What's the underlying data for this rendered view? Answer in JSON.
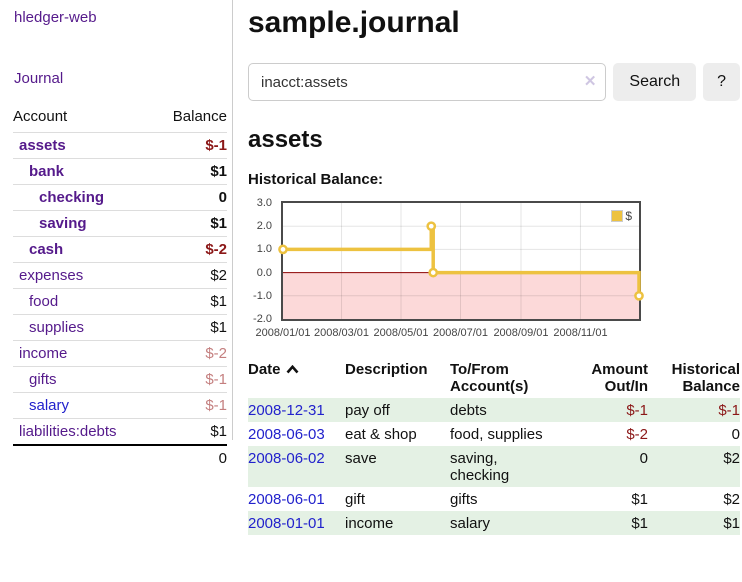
{
  "sidebar": {
    "brand": "hledger-web",
    "nav_journal": "Journal",
    "accounts_table": {
      "account_header": "Account",
      "balance_header": "Balance",
      "rows": [
        {
          "label": "assets",
          "depth": 0,
          "bold": true,
          "balance": "$-1",
          "neg": "strong",
          "link": "purple"
        },
        {
          "label": "bank",
          "depth": 1,
          "bold": true,
          "balance": "$1",
          "neg": "none",
          "link": "purple"
        },
        {
          "label": "checking",
          "depth": 2,
          "bold": true,
          "balance": "0",
          "neg": "none",
          "link": "purple"
        },
        {
          "label": "saving",
          "depth": 2,
          "bold": true,
          "balance": "$1",
          "neg": "none",
          "link": "purple"
        },
        {
          "label": "cash",
          "depth": 1,
          "bold": true,
          "balance": "$-2",
          "neg": "strong",
          "link": "purple"
        },
        {
          "label": "expenses",
          "depth": 0,
          "bold": false,
          "balance": "$2",
          "neg": "none",
          "link": "purple"
        },
        {
          "label": "food",
          "depth": 1,
          "bold": false,
          "balance": "$1",
          "neg": "none",
          "link": "purple"
        },
        {
          "label": "supplies",
          "depth": 1,
          "bold": false,
          "balance": "$1",
          "neg": "none",
          "link": "purple"
        },
        {
          "label": "income",
          "depth": 0,
          "bold": false,
          "balance": "$-2",
          "neg": "soft",
          "link": "purple"
        },
        {
          "label": "gifts",
          "depth": 1,
          "bold": false,
          "balance": "$-1",
          "neg": "soft",
          "link": "purple"
        },
        {
          "label": "salary",
          "depth": 1,
          "bold": false,
          "balance": "$-1",
          "neg": "soft",
          "link": "blue"
        },
        {
          "label": "liabilities:debts",
          "depth": 0,
          "bold": false,
          "balance": "$1",
          "neg": "none",
          "link": "purple"
        }
      ],
      "total": "0"
    }
  },
  "header": {
    "title": "sample.journal"
  },
  "search": {
    "query": "inacct:assets",
    "clear_icon": "✕",
    "search_label": "Search",
    "help_label": "?"
  },
  "account_page": {
    "title": "assets",
    "chart_label": "Historical Balance:"
  },
  "chart_data": {
    "type": "line",
    "title": "Historical Balance:",
    "step": true,
    "series": [
      {
        "name": "$",
        "points": [
          {
            "date": "2008-01-01",
            "value": 1
          },
          {
            "date": "2008-06-01",
            "value": 2
          },
          {
            "date": "2008-06-03",
            "value": 0
          },
          {
            "date": "2008-12-31",
            "value": -1
          }
        ]
      }
    ],
    "x_range": [
      "2008-01-01",
      "2008-12-31"
    ],
    "x_tick_labels": [
      "2008/01/01",
      "2008/03/01",
      "2008/05/01",
      "2008/07/01",
      "2008/09/01",
      "2008/11/01"
    ],
    "y_tick_labels": [
      "3.0",
      "2.0",
      "1.0",
      "0.0",
      "-1.0",
      "-2.0"
    ],
    "ylim": [
      -2,
      3
    ],
    "grid": true,
    "legend": {
      "position": "top-right",
      "label": "$"
    },
    "negative_region_shaded": true
  },
  "register_table": {
    "headers": {
      "date": "Date",
      "description": "Description",
      "accounts": "To/From Account(s)",
      "amount": "Amount Out/In",
      "balance": "Historical Balance"
    },
    "sort_icon": "chevron-up",
    "rows": [
      {
        "date": "2008-12-31",
        "description": "pay off",
        "accounts": "debts",
        "amount": "$-1",
        "amount_neg": true,
        "balance": "$-1",
        "balance_neg": true,
        "shaded": true
      },
      {
        "date": "2008-06-03",
        "description": "eat & shop",
        "accounts": "food, supplies",
        "amount": "$-2",
        "amount_neg": true,
        "balance": "0",
        "balance_neg": false,
        "shaded": false
      },
      {
        "date": "2008-06-02",
        "description": "save",
        "accounts": "saving, checking",
        "amount": "0",
        "amount_neg": false,
        "balance": "$2",
        "balance_neg": false,
        "shaded": true
      },
      {
        "date": "2008-06-01",
        "description": "gift",
        "accounts": "gifts",
        "amount": "$1",
        "amount_neg": false,
        "balance": "$2",
        "balance_neg": false,
        "shaded": false
      },
      {
        "date": "2008-01-01",
        "description": "income",
        "accounts": "salary",
        "amount": "$1",
        "amount_neg": false,
        "balance": "$1",
        "balance_neg": false,
        "shaded": true
      }
    ]
  },
  "colors": {
    "link_purple": "#551a8b",
    "link_blue": "#2222cc",
    "negative_strong": "#8b1717",
    "negative_soft": "#c47f7f",
    "row_green": "#e4f1e4",
    "chart_line": "#edc240",
    "chart_negative_fill": "#fcd9d9",
    "chart_zero_line": "#8b0000",
    "chart_border": "#4a4a4a"
  }
}
